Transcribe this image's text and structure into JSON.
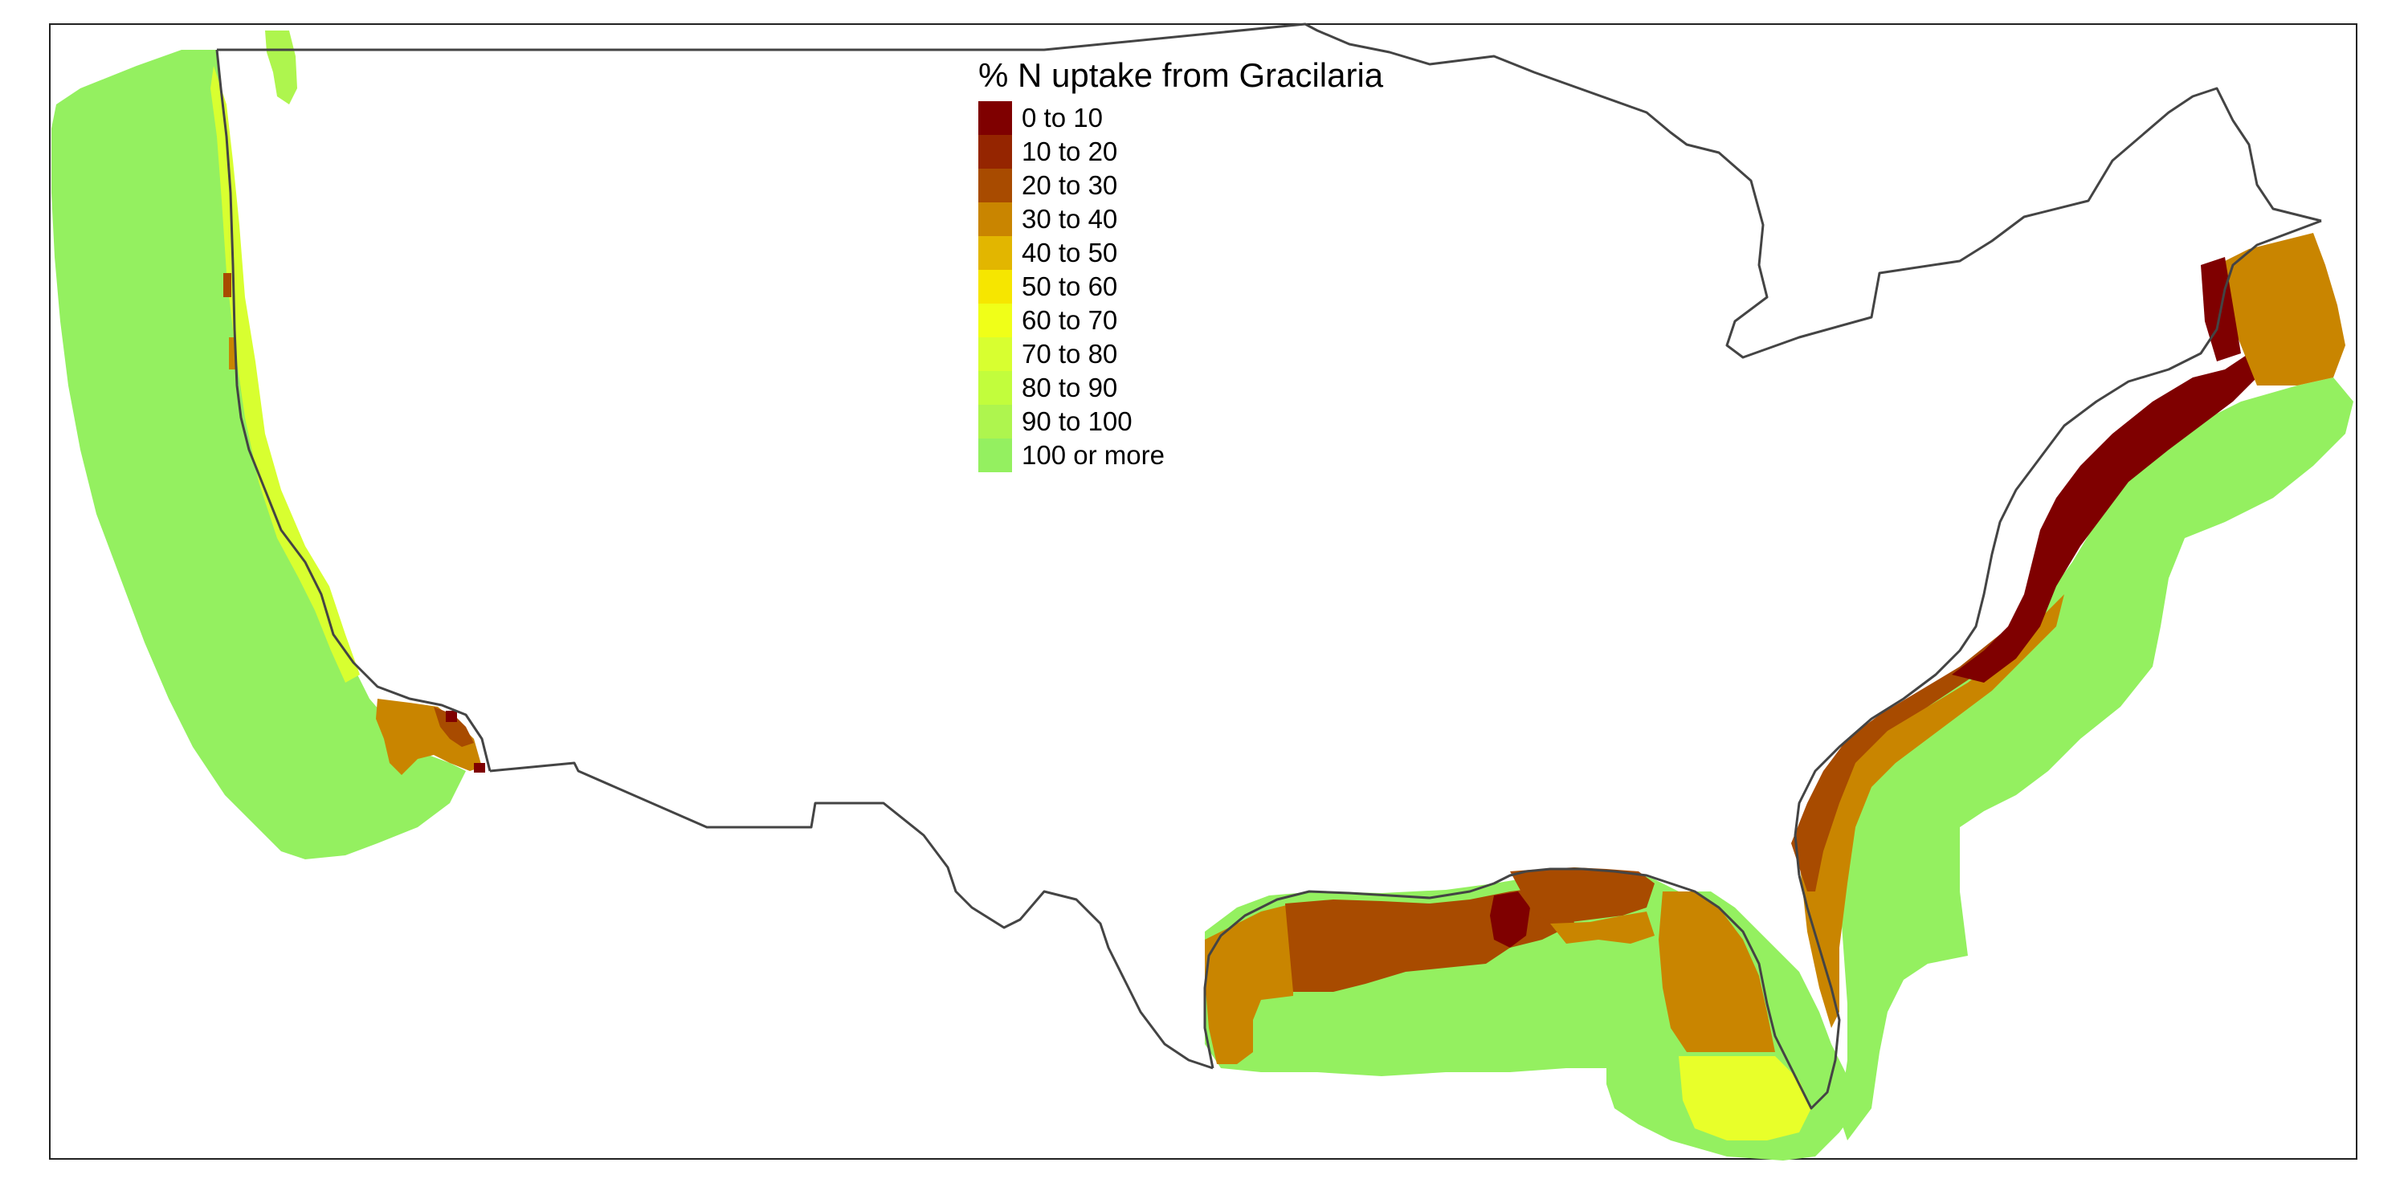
{
  "legend": {
    "title": "% N uptake from Gracilaria",
    "classes": [
      {
        "label": "0 to 10",
        "color": "#7f0000"
      },
      {
        "label": "10 to 20",
        "color": "#952500"
      },
      {
        "label": "20 to 30",
        "color": "#a84b00"
      },
      {
        "label": "30 to 40",
        "color": "#c98500"
      },
      {
        "label": "40 to 50",
        "color": "#e2b600"
      },
      {
        "label": "50 to 60",
        "color": "#f6e600"
      },
      {
        "label": "60 to 70",
        "color": "#f0ff18"
      },
      {
        "label": "70 to 80",
        "color": "#d8ff30"
      },
      {
        "label": "80 to 90",
        "color": "#c2fd3c"
      },
      {
        "label": "90 to 100",
        "color": "#aef54e"
      },
      {
        "label": "100 or more",
        "color": "#94f060"
      }
    ]
  },
  "map": {
    "border_color": "#444444",
    "frame_color": "#222222"
  }
}
